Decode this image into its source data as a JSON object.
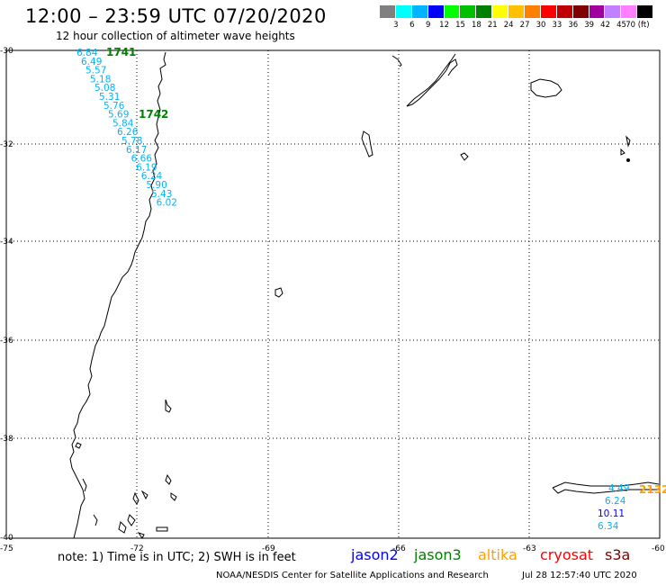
{
  "title": "12:00 – 23:59 UTC 07/20/2020",
  "subtitle": "12 hour collection of altimeter wave heights",
  "legend": {
    "colors": [
      "#808080",
      "#00ffff",
      "#00b4ff",
      "#0000ff",
      "#00ff00",
      "#00c000",
      "#008000",
      "#ffff00",
      "#ffc000",
      "#ff8000",
      "#ff0000",
      "#c00000",
      "#800000",
      "#a000a0",
      "#c080ff",
      "#ff80ff",
      "#000000"
    ],
    "labels": [
      "3",
      "6",
      "9",
      "12",
      "15",
      "18",
      "21",
      "24",
      "27",
      "30",
      "33",
      "36",
      "39",
      "42",
      "45",
      "70 (ft)"
    ]
  },
  "axes": {
    "lat_labels": [
      "-30",
      "-32",
      "-34",
      "-36",
      "-38",
      "-40"
    ],
    "lon_labels": [
      "-75",
      "-72",
      "-69",
      "-66",
      "-63",
      "-60"
    ]
  },
  "tracks": {
    "track_1741": {
      "id": "1741",
      "id_color": "#008000",
      "values": [
        "6.84",
        "6.49",
        "5.57",
        "5.18",
        "5.08",
        "5.31",
        "5.76",
        "5.69",
        "5.84",
        "6.26",
        "5.78",
        "6.17",
        "6.66",
        "6.19",
        "6.24",
        "5.90",
        "5.43",
        "6.02"
      ]
    },
    "track_1742": {
      "id": "1742",
      "id_color": "#008000"
    },
    "track_2132": {
      "id": "2132",
      "id_color": "#ffa000",
      "values": [
        "4.49",
        "6.24",
        "10.11",
        "6.34"
      ]
    }
  },
  "note": "note:  1) Time is in UTC;  2) SWH is in feet",
  "satellites": [
    {
      "name": "jason2",
      "color": "#0000ff"
    },
    {
      "name": "jason3",
      "color": "#008000"
    },
    {
      "name": "altika",
      "color": "#ffa000"
    },
    {
      "name": "cryosat",
      "color": "#ff0000"
    },
    {
      "name": "s3a",
      "color": "#800000"
    }
  ],
  "footer": "NOAA/NESDIS Center for Satellite Applications and Research",
  "footer_date": "Jul 28 12:57:40 UTC 2020"
}
